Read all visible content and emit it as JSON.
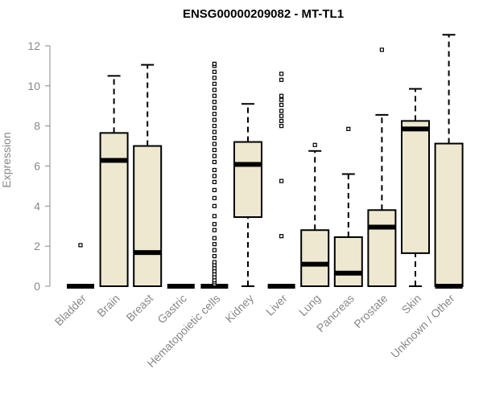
{
  "chart_data": {
    "type": "boxplot",
    "title": "ENSG00000209082 - MT-TL1",
    "ylabel": "Expression",
    "xlabel": "",
    "ylim": [
      0,
      12.6
    ],
    "yticks": [
      0,
      2,
      4,
      6,
      8,
      10,
      12
    ],
    "box_fill": "#EEE8D0",
    "categories": [
      "Bladder",
      "Brain",
      "Breast",
      "Gastric",
      "Hematopoietic cells",
      "Kidney",
      "Liver",
      "Lung",
      "Pancreas",
      "Prostate",
      "Skin",
      "Unknown / Other"
    ],
    "boxes": [
      {
        "name": "Bladder",
        "min": 0,
        "q1": 0,
        "median": 0,
        "q3": 0,
        "max": 0,
        "outliers": [
          2.05
        ]
      },
      {
        "name": "Brain",
        "min": 0,
        "q1": 0,
        "median": 6.28,
        "q3": 7.65,
        "max": 10.5,
        "outliers": []
      },
      {
        "name": "Breast",
        "min": 0,
        "q1": 0,
        "median": 1.68,
        "q3": 7.0,
        "max": 11.05,
        "outliers": []
      },
      {
        "name": "Gastric",
        "min": 0,
        "q1": 0,
        "median": 0,
        "q3": 0,
        "max": 0,
        "outliers": []
      },
      {
        "name": "Hematopoietic cells",
        "min": 0,
        "q1": 0,
        "median": 0,
        "q3": 0,
        "max": 0,
        "outliers": [
          0.1,
          0.2,
          0.3,
          0.45,
          0.6,
          0.75,
          0.9,
          1.05,
          1.2,
          1.5,
          1.8,
          2.1,
          2.4,
          2.8,
          3.1,
          3.5,
          4.0,
          4.4,
          4.8,
          5.2,
          5.5,
          5.8,
          6.2,
          6.5,
          6.8,
          7.1,
          7.4,
          7.7,
          8.0,
          8.3,
          8.6,
          8.9,
          9.2,
          9.5,
          9.8,
          10.1,
          10.4,
          10.7,
          11.0,
          11.1
        ]
      },
      {
        "name": "Kidney",
        "min": 0,
        "q1": 3.45,
        "median": 6.08,
        "q3": 7.2,
        "max": 9.1,
        "outliers": []
      },
      {
        "name": "Liver",
        "min": 0,
        "q1": 0,
        "median": 0,
        "q3": 0,
        "max": 0,
        "outliers": [
          2.5,
          5.25,
          8.0,
          8.25,
          8.5,
          8.75,
          9.05,
          9.3,
          9.5,
          10.3,
          10.6
        ]
      },
      {
        "name": "Lung",
        "min": 0,
        "q1": 0,
        "median": 1.1,
        "q3": 2.8,
        "max": 6.75,
        "outliers": [
          7.05
        ]
      },
      {
        "name": "Pancreas",
        "min": 0,
        "q1": 0,
        "median": 0.65,
        "q3": 2.45,
        "max": 5.6,
        "outliers": [
          7.85
        ]
      },
      {
        "name": "Prostate",
        "min": 0,
        "q1": 0,
        "median": 2.95,
        "q3": 3.8,
        "max": 8.55,
        "outliers": [
          11.8
        ]
      },
      {
        "name": "Skin",
        "min": 0,
        "q1": 1.65,
        "median": 7.85,
        "q3": 8.25,
        "max": 9.85,
        "outliers": []
      },
      {
        "name": "Unknown / Other",
        "min": 0,
        "q1": 0,
        "median": 0,
        "q3": 7.12,
        "max": 12.55,
        "outliers": []
      }
    ]
  }
}
